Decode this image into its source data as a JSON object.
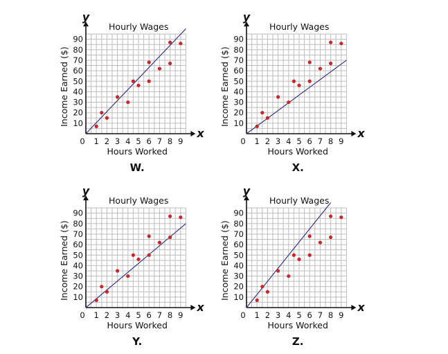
{
  "chart_data": [
    {
      "type": "scatter",
      "panel_label": "W.",
      "title": "Hourly Wages",
      "xlabel": "Hours Worked",
      "ylabel": "Income Earned ($)",
      "x_var": "x",
      "y_var": "y",
      "xlim": [
        0,
        9.5
      ],
      "ylim": [
        0,
        95
      ],
      "x_ticks": [
        "0",
        "1",
        "2",
        "3",
        "4",
        "5",
        "6",
        "7",
        "8",
        "9"
      ],
      "y_ticks": [
        "10",
        "20",
        "30",
        "40",
        "50",
        "60",
        "70",
        "80",
        "90"
      ],
      "grid": true,
      "points": [
        [
          1,
          7
        ],
        [
          1.5,
          20
        ],
        [
          2,
          15
        ],
        [
          3,
          35
        ],
        [
          4,
          30
        ],
        [
          4.5,
          50
        ],
        [
          5,
          46
        ],
        [
          6,
          68
        ],
        [
          6,
          50
        ],
        [
          7,
          62
        ],
        [
          8,
          87
        ],
        [
          8,
          67
        ],
        [
          9,
          86
        ]
      ],
      "line": [
        [
          0,
          0
        ],
        [
          9.5,
          100
        ]
      ]
    },
    {
      "type": "scatter",
      "panel_label": "X.",
      "title": "Hourly Wages",
      "xlabel": "Hours Worked",
      "ylabel": "Income Earned ($)",
      "x_var": "x",
      "y_var": "y",
      "xlim": [
        0,
        9.5
      ],
      "ylim": [
        0,
        95
      ],
      "x_ticks": [
        "0",
        "1",
        "2",
        "3",
        "4",
        "5",
        "6",
        "7",
        "8",
        "9"
      ],
      "y_ticks": [
        "10",
        "20",
        "30",
        "40",
        "50",
        "60",
        "70",
        "80",
        "90"
      ],
      "grid": true,
      "points": [
        [
          1,
          7
        ],
        [
          1.5,
          20
        ],
        [
          2,
          15
        ],
        [
          3,
          35
        ],
        [
          4,
          30
        ],
        [
          4.5,
          50
        ],
        [
          5,
          46
        ],
        [
          6,
          68
        ],
        [
          6,
          50
        ],
        [
          7,
          62
        ],
        [
          8,
          87
        ],
        [
          8,
          67
        ],
        [
          9,
          86
        ]
      ],
      "line": [
        [
          0,
          0
        ],
        [
          9.5,
          70
        ]
      ]
    },
    {
      "type": "scatter",
      "panel_label": "Y.",
      "title": "Hourly Wages",
      "xlabel": "Hours Worked",
      "ylabel": "Income Earned ($)",
      "x_var": "x",
      "y_var": "y",
      "xlim": [
        0,
        9.5
      ],
      "ylim": [
        0,
        95
      ],
      "x_ticks": [
        "0",
        "1",
        "2",
        "3",
        "4",
        "5",
        "6",
        "7",
        "8",
        "9"
      ],
      "y_ticks": [
        "10",
        "20",
        "30",
        "40",
        "50",
        "60",
        "70",
        "80",
        "90"
      ],
      "grid": true,
      "points": [
        [
          1,
          7
        ],
        [
          1.5,
          20
        ],
        [
          2,
          15
        ],
        [
          3,
          35
        ],
        [
          4,
          30
        ],
        [
          4.5,
          50
        ],
        [
          5,
          46
        ],
        [
          6,
          68
        ],
        [
          6,
          50
        ],
        [
          7,
          62
        ],
        [
          8,
          87
        ],
        [
          8,
          67
        ],
        [
          9,
          86
        ]
      ],
      "line": [
        [
          0,
          0
        ],
        [
          9.5,
          80
        ]
      ]
    },
    {
      "type": "scatter",
      "panel_label": "Z.",
      "title": "Hourly Wages",
      "xlabel": "Hours Worked",
      "ylabel": "Income Earned ($)",
      "x_var": "x",
      "y_var": "y",
      "xlim": [
        0,
        9.5
      ],
      "ylim": [
        0,
        95
      ],
      "x_ticks": [
        "0",
        "1",
        "2",
        "3",
        "4",
        "5",
        "6",
        "7",
        "8",
        "9"
      ],
      "y_ticks": [
        "10",
        "20",
        "30",
        "40",
        "50",
        "60",
        "70",
        "80",
        "90"
      ],
      "grid": true,
      "points": [
        [
          1,
          7
        ],
        [
          1.5,
          20
        ],
        [
          2,
          15
        ],
        [
          3,
          35
        ],
        [
          4,
          30
        ],
        [
          4.5,
          50
        ],
        [
          5,
          46
        ],
        [
          6,
          68
        ],
        [
          6,
          50
        ],
        [
          7,
          62
        ],
        [
          8,
          87
        ],
        [
          8,
          67
        ],
        [
          9,
          86
        ]
      ],
      "line": [
        [
          0,
          0
        ],
        [
          8,
          100
        ]
      ]
    }
  ],
  "colors": {
    "point": "#c8262b",
    "fit_line": "#2b2b86",
    "grid": "#bdbdbd",
    "axis": "#111111"
  }
}
